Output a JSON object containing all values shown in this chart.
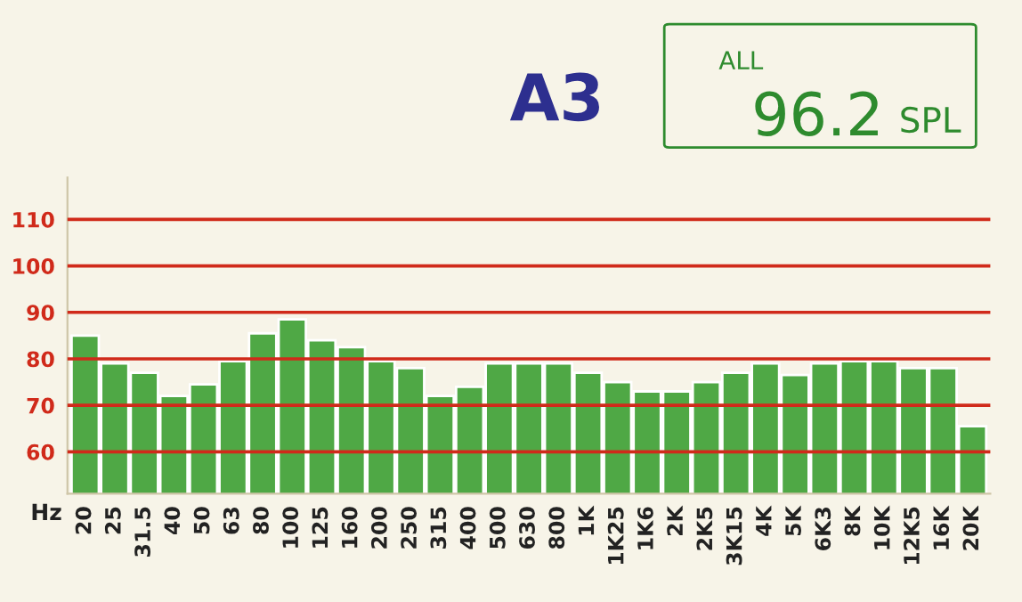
{
  "chart_data": {
    "type": "bar",
    "xlabel": "Hz",
    "categories": [
      "20",
      "25",
      "31.5",
      "40",
      "50",
      "63",
      "80",
      "100",
      "125",
      "160",
      "200",
      "250",
      "315",
      "400",
      "500",
      "630",
      "800",
      "1K",
      "1K25",
      "1K6",
      "2K",
      "2K5",
      "3K15",
      "4K",
      "5K",
      "6K3",
      "8K",
      "10K",
      "12K5",
      "16K",
      "20K"
    ],
    "values": [
      85,
      79,
      77,
      72,
      74.5,
      79.5,
      85.5,
      88.5,
      84,
      82.5,
      79.5,
      78,
      72,
      74,
      79,
      79,
      79,
      77,
      75,
      73,
      73,
      75,
      77,
      79,
      76.5,
      79,
      79.5,
      79.5,
      78,
      78,
      65.5
    ],
    "color": "#4fa845",
    "ylim": [
      51,
      119
    ],
    "yticks": [
      60,
      70,
      80,
      90,
      100,
      110
    ],
    "grid": "y",
    "annotations": [
      "A3",
      "ALL",
      "96.2",
      "SPL"
    ]
  }
}
